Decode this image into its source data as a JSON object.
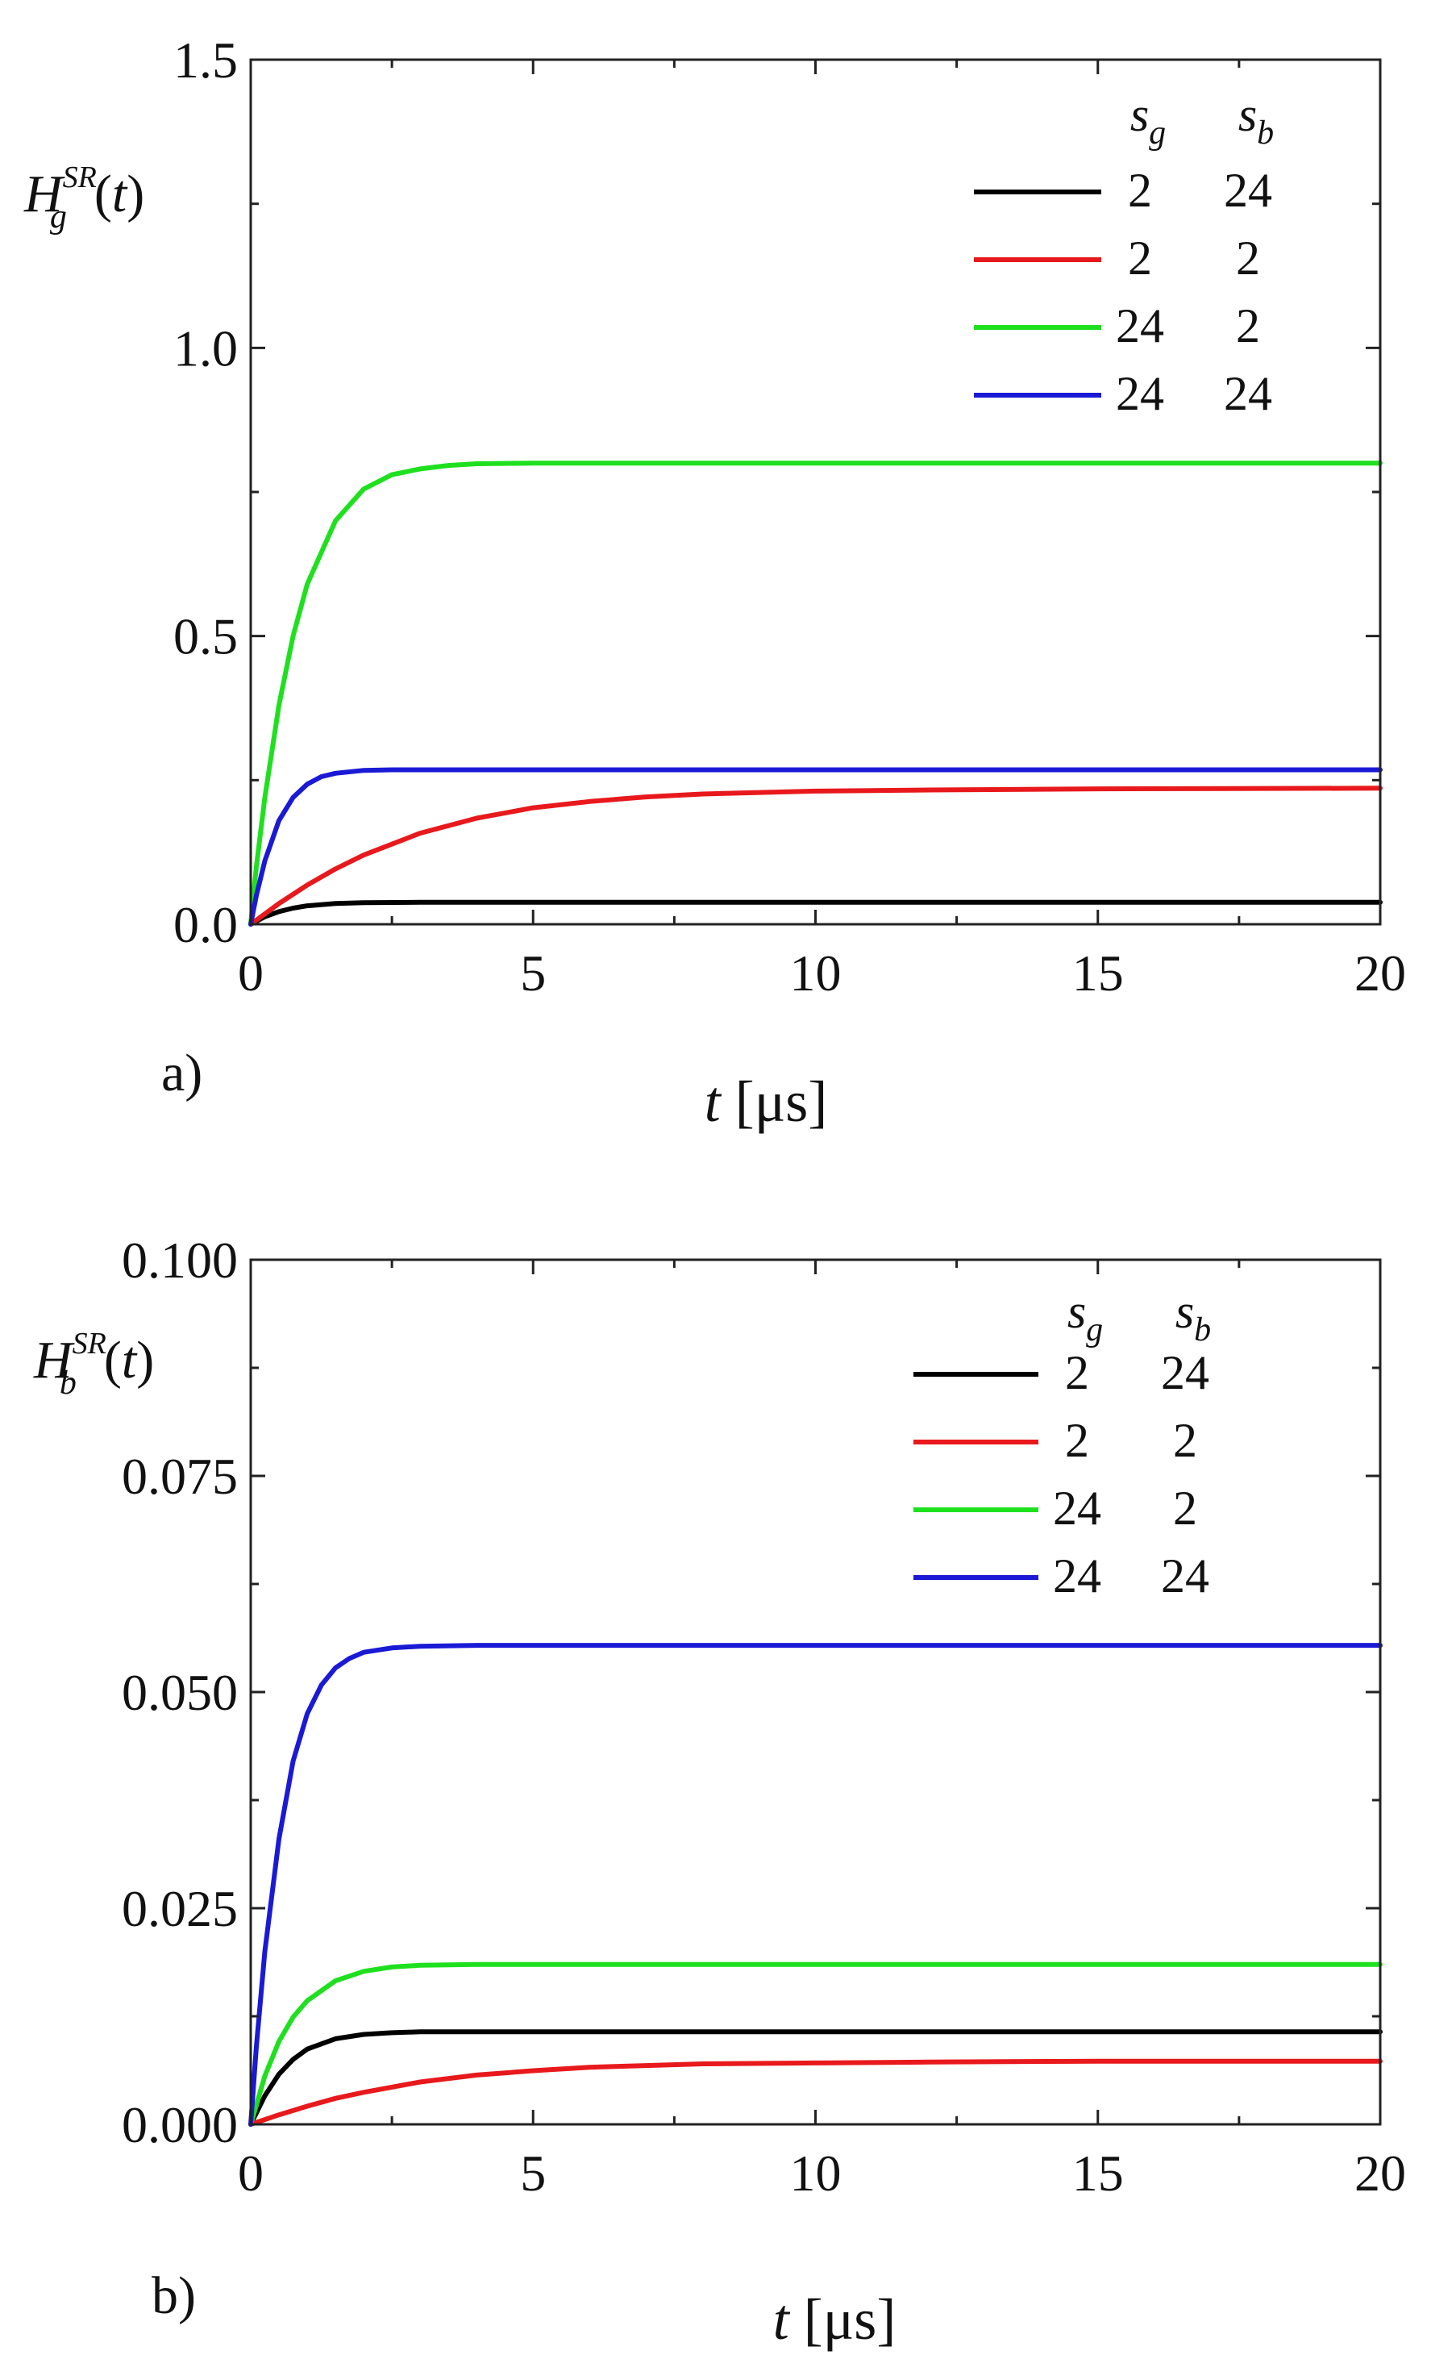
{
  "chart_data": [
    {
      "type": "line",
      "panel_label": "a)",
      "y_label": {
        "base": "H",
        "sub": "g",
        "sup": "SR",
        "arg": "t"
      },
      "x_label": {
        "var": "t",
        "unit": "[μs]"
      },
      "xlim": [
        0,
        20
      ],
      "ylim": [
        0,
        1.5
      ],
      "x_ticks": [
        "0",
        "5",
        "10",
        "15",
        "20"
      ],
      "y_ticks": [
        "0.0",
        "0.5",
        "1.0",
        "1.5"
      ],
      "x_tick_values": [
        0,
        5,
        10,
        15,
        20
      ],
      "y_tick_values": [
        0,
        0.5,
        1.0,
        1.5
      ],
      "legend_position": "top-right",
      "legend_header": {
        "sg": "s",
        "sg_sub": "g",
        "sb": "s",
        "sb_sub": "b"
      },
      "series": [
        {
          "sg": "2",
          "sb": "24",
          "color": "#000000",
          "x": [
            0,
            0.25,
            0.5,
            0.75,
            1,
            1.5,
            2,
            3,
            4,
            5,
            7,
            10,
            15,
            20
          ],
          "y": [
            0,
            0.013,
            0.022,
            0.028,
            0.032,
            0.036,
            0.0375,
            0.038,
            0.038,
            0.038,
            0.038,
            0.038,
            0.038,
            0.038
          ]
        },
        {
          "sg": "2",
          "sb": "2",
          "color": "#e8191c",
          "x": [
            0,
            0.5,
            1,
            1.5,
            2,
            3,
            4,
            5,
            6,
            7,
            8,
            10,
            12,
            15,
            20
          ],
          "y": [
            0,
            0.036,
            0.068,
            0.096,
            0.12,
            0.158,
            0.184,
            0.202,
            0.213,
            0.221,
            0.226,
            0.231,
            0.233,
            0.235,
            0.236
          ]
        },
        {
          "sg": "24",
          "sb": "2",
          "color": "#1fe01f",
          "x": [
            0,
            0.1,
            0.25,
            0.5,
            0.75,
            1,
            1.5,
            2,
            2.5,
            3,
            3.5,
            4,
            5,
            6,
            8,
            10,
            20
          ],
          "y": [
            0,
            0.1,
            0.22,
            0.38,
            0.5,
            0.59,
            0.7,
            0.755,
            0.78,
            0.79,
            0.796,
            0.799,
            0.8,
            0.8,
            0.8,
            0.8,
            0.8
          ]
        },
        {
          "sg": "24",
          "sb": "24",
          "color": "#1a1ad6",
          "x": [
            0,
            0.1,
            0.25,
            0.5,
            0.75,
            1,
            1.25,
            1.5,
            2,
            2.5,
            3,
            4,
            5,
            10,
            20
          ],
          "y": [
            0,
            0.05,
            0.11,
            0.18,
            0.22,
            0.243,
            0.256,
            0.262,
            0.267,
            0.268,
            0.268,
            0.268,
            0.268,
            0.268,
            0.268
          ]
        }
      ]
    },
    {
      "type": "line",
      "panel_label": "b)",
      "y_label": {
        "base": "H",
        "sub": "b",
        "sup": "SR",
        "arg": "t"
      },
      "x_label": {
        "var": "t",
        "unit": "[μs]"
      },
      "xlim": [
        0,
        20
      ],
      "ylim": [
        0,
        0.1
      ],
      "x_ticks": [
        "0",
        "5",
        "10",
        "15",
        "20"
      ],
      "y_ticks": [
        "0.000",
        "0.025",
        "0.050",
        "0.075",
        "0.100"
      ],
      "x_tick_values": [
        0,
        5,
        10,
        15,
        20
      ],
      "y_tick_values": [
        0,
        0.025,
        0.05,
        0.075,
        0.1
      ],
      "legend_position": "top-right",
      "legend_header": {
        "sg": "s",
        "sg_sub": "g",
        "sb": "s",
        "sb_sub": "b"
      },
      "series": [
        {
          "sg": "2",
          "sb": "24",
          "color": "#000000",
          "x": [
            0,
            0.25,
            0.5,
            0.75,
            1,
            1.5,
            2,
            2.5,
            3,
            4,
            5,
            10,
            20
          ],
          "y": [
            0,
            0.0033,
            0.0058,
            0.0075,
            0.0087,
            0.0099,
            0.0104,
            0.0106,
            0.0107,
            0.0107,
            0.0107,
            0.0107,
            0.0107
          ]
        },
        {
          "sg": "2",
          "sb": "2",
          "color": "#e8191c",
          "x": [
            0,
            0.5,
            1,
            1.5,
            2,
            3,
            4,
            5,
            6,
            7,
            8,
            10,
            12,
            15,
            20
          ],
          "y": [
            0,
            0.0011,
            0.0021,
            0.003,
            0.0037,
            0.0049,
            0.0057,
            0.0062,
            0.0066,
            0.0068,
            0.007,
            0.0071,
            0.0072,
            0.0073,
            0.0073
          ]
        },
        {
          "sg": "24",
          "sb": "2",
          "color": "#1fe01f",
          "x": [
            0,
            0.25,
            0.5,
            0.75,
            1,
            1.5,
            2,
            2.5,
            3,
            4,
            5,
            10,
            20
          ],
          "y": [
            0,
            0.0056,
            0.0096,
            0.0124,
            0.0143,
            0.0166,
            0.0177,
            0.0182,
            0.0184,
            0.0185,
            0.0185,
            0.0185,
            0.0185
          ]
        },
        {
          "sg": "24",
          "sb": "24",
          "color": "#1a1ad6",
          "x": [
            0,
            0.1,
            0.25,
            0.5,
            0.75,
            1,
            1.25,
            1.5,
            1.75,
            2,
            2.5,
            3,
            4,
            5,
            10,
            20
          ],
          "y": [
            0,
            0.009,
            0.02,
            0.033,
            0.042,
            0.0475,
            0.0508,
            0.0528,
            0.0539,
            0.0546,
            0.0551,
            0.0553,
            0.0554,
            0.0554,
            0.0554,
            0.0554
          ]
        }
      ]
    }
  ]
}
